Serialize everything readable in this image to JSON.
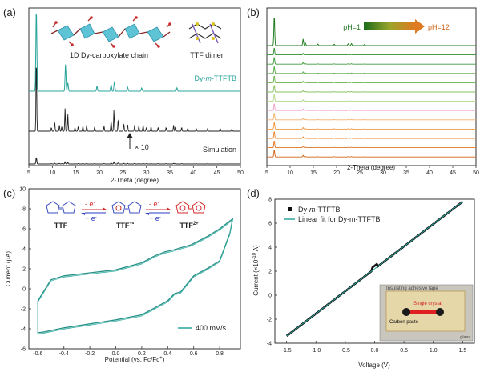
{
  "chart_data": [
    {
      "panel": "(a)",
      "type": "line",
      "xlabel": "2-Theta (degree)",
      "xlim": [
        5,
        50
      ],
      "xticks": [
        5,
        10,
        15,
        20,
        25,
        30,
        35,
        40,
        45,
        50
      ],
      "series": [
        {
          "name": "Dy-m-TTFTB",
          "color": "#2aa59c",
          "peaks": [
            [
              6.6,
              1.0
            ],
            [
              12.8,
              0.32
            ],
            [
              13.3,
              0.1
            ],
            [
              19.5,
              0.06
            ],
            [
              22.5,
              0.08
            ],
            [
              23.2,
              0.12
            ],
            [
              26.0,
              0.05
            ],
            [
              29.0,
              0.04
            ],
            [
              36.5,
              0.04
            ]
          ]
        },
        {
          "name": "Simulation",
          "color": "#222222",
          "peaks": [
            [
              6.6,
              1.0
            ],
            [
              9.8,
              0.05
            ],
            [
              10.5,
              0.12
            ],
            [
              11.5,
              0.08
            ],
            [
              12.0,
              0.06
            ],
            [
              12.7,
              0.3
            ],
            [
              13.3,
              0.22
            ],
            [
              14.8,
              0.05
            ],
            [
              15.5,
              0.06
            ],
            [
              16.5,
              0.07
            ],
            [
              17.3,
              0.08
            ],
            [
              19.0,
              0.06
            ],
            [
              21.0,
              0.07
            ],
            [
              22.5,
              0.14
            ],
            [
              23.1,
              0.28
            ],
            [
              24.0,
              0.16
            ],
            [
              25.2,
              0.1
            ],
            [
              26.0,
              0.09
            ],
            [
              27.5,
              0.08
            ],
            [
              28.4,
              0.07
            ],
            [
              29.3,
              0.08
            ],
            [
              30.0,
              0.05
            ],
            [
              31.0,
              0.06
            ],
            [
              32.5,
              0.05
            ],
            [
              34.2,
              0.05
            ],
            [
              35.8,
              0.08
            ],
            [
              36.2,
              0.06
            ],
            [
              37.5,
              0.05
            ],
            [
              38.8,
              0.04
            ],
            [
              40.6,
              0.04
            ],
            [
              43.0,
              0.03
            ],
            [
              45.7,
              0.04
            ],
            [
              48.2,
              0.03
            ]
          ]
        }
      ],
      "annotations": [
        "1D Dy-carboxylate chain",
        "TTF dimer",
        "× 10"
      ]
    },
    {
      "panel": "(b)",
      "type": "line",
      "xlabel": "2-Theta (degree)",
      "xlim": [
        5,
        50
      ],
      "xticks": [
        5,
        10,
        15,
        20,
        25,
        30,
        35,
        40,
        45,
        50
      ],
      "gradient_labels": [
        "pH=1",
        "pH=12"
      ],
      "series_colors": [
        "#1a7a1a",
        "#2e8b2e",
        "#3f9a3a",
        "#56a845",
        "#6ab14c",
        "#86c061",
        "#b4d98c",
        "#f0a0c8",
        "#f5b070",
        "#ef9a45",
        "#e8862c",
        "#df7520",
        "#d06518"
      ],
      "peaks": [
        [
          6.6,
          1.0
        ],
        [
          12.8,
          0.22
        ],
        [
          13.3,
          0.08
        ],
        [
          16.0,
          0.05
        ],
        [
          19.5,
          0.05
        ],
        [
          22.5,
          0.06
        ],
        [
          23.2,
          0.07
        ],
        [
          26.0,
          0.04
        ]
      ]
    },
    {
      "panel": "(c)",
      "type": "line",
      "xlabel": "Potential (vs. Fc/Fc⁺)",
      "ylabel": "Current (μA)",
      "xlim": [
        -0.6,
        0.9
      ],
      "ylim": [
        -6,
        10
      ],
      "xticks": [
        "-0.6",
        "-0.4",
        "-0.2",
        "0.0",
        "0.2",
        "0.4",
        "0.6",
        "0.8"
      ],
      "yticks": [
        "-6",
        "-4",
        "-2",
        "0",
        "2",
        "4",
        "6",
        "8",
        "10"
      ],
      "series": [
        {
          "name": "400 mV/s",
          "color": "#2aa59c"
        }
      ],
      "forward_sweep": [
        [
          -0.6,
          -1.2
        ],
        [
          -0.5,
          0.9
        ],
        [
          -0.4,
          1.3
        ],
        [
          -0.2,
          1.6
        ],
        [
          0.0,
          1.9
        ],
        [
          0.2,
          2.6
        ],
        [
          0.3,
          3.3
        ],
        [
          0.38,
          3.7
        ],
        [
          0.45,
          3.9
        ],
        [
          0.5,
          4.1
        ],
        [
          0.58,
          4.4
        ],
        [
          0.7,
          5.2
        ],
        [
          0.8,
          6.0
        ],
        [
          0.9,
          7.0
        ]
      ],
      "reverse_sweep": [
        [
          0.9,
          7.0
        ],
        [
          0.88,
          5.6
        ],
        [
          0.8,
          2.8
        ],
        [
          0.7,
          2.0
        ],
        [
          0.6,
          1.3
        ],
        [
          0.5,
          -0.3
        ],
        [
          0.45,
          -0.5
        ],
        [
          0.4,
          -1.2
        ],
        [
          0.2,
          -2.6
        ],
        [
          0.0,
          -3.1
        ],
        [
          -0.2,
          -3.5
        ],
        [
          -0.4,
          -3.9
        ],
        [
          -0.55,
          -4.3
        ],
        [
          -0.6,
          -4.4
        ],
        [
          -0.6,
          -1.2
        ]
      ],
      "scheme": {
        "species": [
          "TTF",
          "TTF",
          "TTF"
        ],
        "superscripts": [
          "",
          "+•",
          "2+"
        ],
        "arrows": [
          [
            "- e⁻",
            "+ e⁻"
          ],
          [
            "- e⁻",
            "+ e⁻"
          ]
        ]
      }
    },
    {
      "panel": "(d)",
      "type": "line",
      "xlabel": "Voltage (V)",
      "ylabel": "Current (×10⁻¹⁰ A)",
      "xlim": [
        -1.5,
        1.5
      ],
      "ylim": [
        -4,
        8
      ],
      "xticks": [
        "-1.5",
        "-1.0",
        "-0.5",
        "0.0",
        "0.5",
        "1.0",
        "1.5"
      ],
      "yticks": [
        "-4",
        "-2",
        "0",
        "2",
        "4",
        "6",
        "8"
      ],
      "series": [
        {
          "name": "Dy-m-TTFTB",
          "color": "#111111",
          "marker": "square"
        },
        {
          "name": "Linear fit for Dy-m-TTFTB",
          "color": "#2aa59c",
          "fit": [
            [
              -1.5,
              -3.4
            ],
            [
              1.5,
              7.8
            ]
          ]
        }
      ],
      "inset_labels": [
        "Insulating adhesive tape",
        "Single crystal",
        "Carbon paste",
        "glass"
      ]
    }
  ],
  "labels": {
    "a": "(a)",
    "b": "(b)",
    "c": "(c)",
    "d": "(d)",
    "chain": "1D Dy-carboxylate chain",
    "dimer": "TTF dimer",
    "dy_name": "Dy-",
    "dy_m": "m",
    "dy_tail": "-TTFTB",
    "sim": "Simulation",
    "x10": "× 10",
    "ph1": "pH=1",
    "ph12": "pH=12",
    "xlab_ab": "2-Theta (degree)",
    "xlab_c": "Potential (vs. Fc/Fc",
    "xlab_c_sup": "+",
    "xlab_c_end": ")",
    "ylab_c": "Current (μA)",
    "legend_c": "400 mV/s",
    "xlab_d": "Voltage (V)",
    "ylab_d": "Current (×10",
    "ylab_d_sup": "-10",
    "ylab_d_end": " A)",
    "leg_d1_a": "Dy-",
    "leg_d1_m": "m",
    "leg_d1_b": "-TTFTB",
    "leg_d2": "Linear fit for Dy-m-TTFTB",
    "inset_tape": "Insulating adhesive tape",
    "inset_crystal": "Single crystal",
    "inset_paste": "Carbon paste",
    "inset_glass": "glass",
    "ttf": "TTF",
    "ttf_p": "TTF",
    "ttf_p_sup": "+•",
    "ttf_2": "TTF",
    "ttf_2_sup": "2+",
    "minus_e": "- e",
    "plus_e": "+ e",
    "e_sup": "-"
  }
}
